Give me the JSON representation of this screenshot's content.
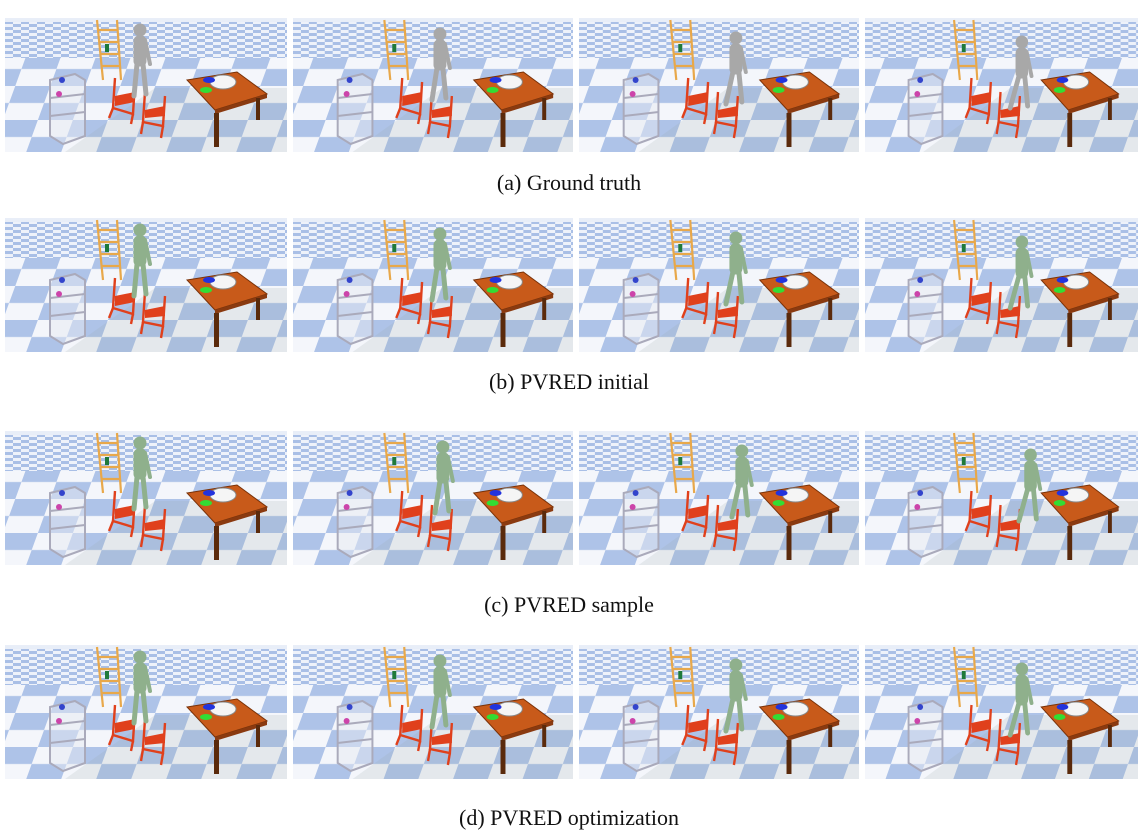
{
  "captions": [
    "(a) Ground truth",
    "(b) PVRED initial",
    "(c) PVRED sample",
    "(d) PVRED optimization"
  ]
}
